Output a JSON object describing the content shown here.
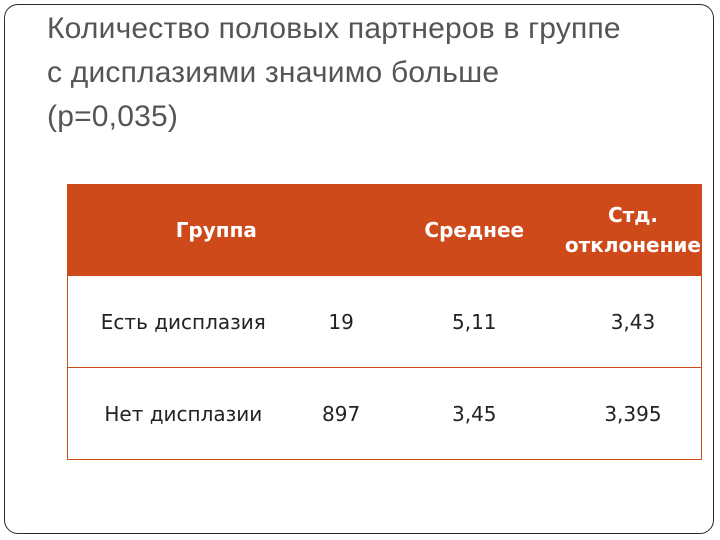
{
  "title": {
    "line1": "Количество половых партнеров в группе",
    "line2": "с дисплазиями значимо больше",
    "line3": "(р=0,035)"
  },
  "table": {
    "headers": {
      "group": "Группа",
      "count": "",
      "mean": "Среднее",
      "std_line1": "Стд.",
      "std_line2": "отклонение"
    },
    "rows": [
      {
        "group": "Есть дисплазия",
        "count": "19",
        "mean": "5,11",
        "std": "3,43"
      },
      {
        "group": "Нет дисплазии",
        "count": "897",
        "mean": "3,45",
        "std": "3,395"
      }
    ]
  },
  "colors": {
    "header_bg": "#cf4a1b",
    "title_text": "#555555"
  }
}
